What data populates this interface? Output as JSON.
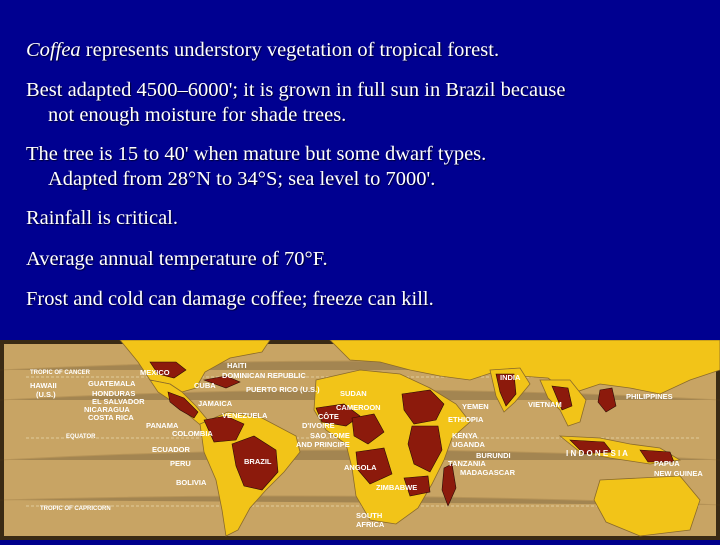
{
  "slide": {
    "bullets": [
      {
        "italic": "Coffea",
        "rest": " represents understory vegetation of tropical forest."
      },
      {
        "line1": "Best adapted 4500–6000'; it is grown in full sun in Brazil because",
        "line2": "not enough moisture for shade trees."
      },
      {
        "line1": "The tree is 15 to 40' when mature but some dwarf types.",
        "line2": "Adapted from 28°N to 34°S; sea level to 7000'."
      },
      {
        "text": "Rainfall is critical."
      },
      {
        "text": "Average annual temperature of 70°F."
      },
      {
        "text": "Frost and cold can damage coffee; freeze can kill."
      }
    ]
  },
  "map": {
    "lines": {
      "cancer": "TROPIC OF CANCER",
      "equator": "EQUATOR",
      "capricorn": "TROPIC OF CAPRICORN"
    },
    "labels": {
      "hawaii_1": "HAWAII",
      "hawaii_2": "(U.S.)",
      "mexico": "MEXICO",
      "guatemala": "GUATEMALA",
      "honduras": "HONDURAS",
      "el_salvador": "EL SALVADOR",
      "nicaragua": "NICARAGUA",
      "costa_rica": "COSTA RICA",
      "panama": "PANAMA",
      "haiti": "HAITI",
      "dominican": "DOMINICAN REPUBLIC",
      "cuba": "CUBA",
      "puerto_rico": "PUERTO RICO (U.S.)",
      "jamaica": "JAMAICA",
      "venezuela": "VENEZUELA",
      "colombia": "COLOMBIA",
      "ecuador": "ECUADOR",
      "peru": "PERU",
      "bolivia": "BOLIVIA",
      "brazil": "BRAZIL",
      "sudan": "SUDAN",
      "cameroon": "CAMEROON",
      "cote_1": "CÔTE",
      "cote_2": "D'IVOIRE",
      "sao_tome_1": "SAO TOME",
      "sao_tome_2": "AND PRINCIPE",
      "angola": "ANGOLA",
      "zimbabwe": "ZIMBABWE",
      "south_africa_1": "SOUTH",
      "south_africa_2": "AFRICA",
      "yemen": "YEMEN",
      "ethiopia": "ETHIOPIA",
      "kenya": "KENYA",
      "uganda": "UGANDA",
      "burundi": "BURUNDI",
      "tanzania": "TANZANIA",
      "madagascar": "MADAGASCAR",
      "india": "INDIA",
      "vietnam": "VIETNAM",
      "philippines": "PHILIPPINES",
      "indonesia": "I N D O N E S I A",
      "papua_1": "PAPUA",
      "papua_2": "NEW GUINEA"
    },
    "colors": {
      "ocean": "#c8a464",
      "land": "#f2c418",
      "coffee": "#8c1a0c",
      "border": "#2a0b05",
      "frame": "#3a2a14",
      "label": "#ffffff"
    }
  }
}
